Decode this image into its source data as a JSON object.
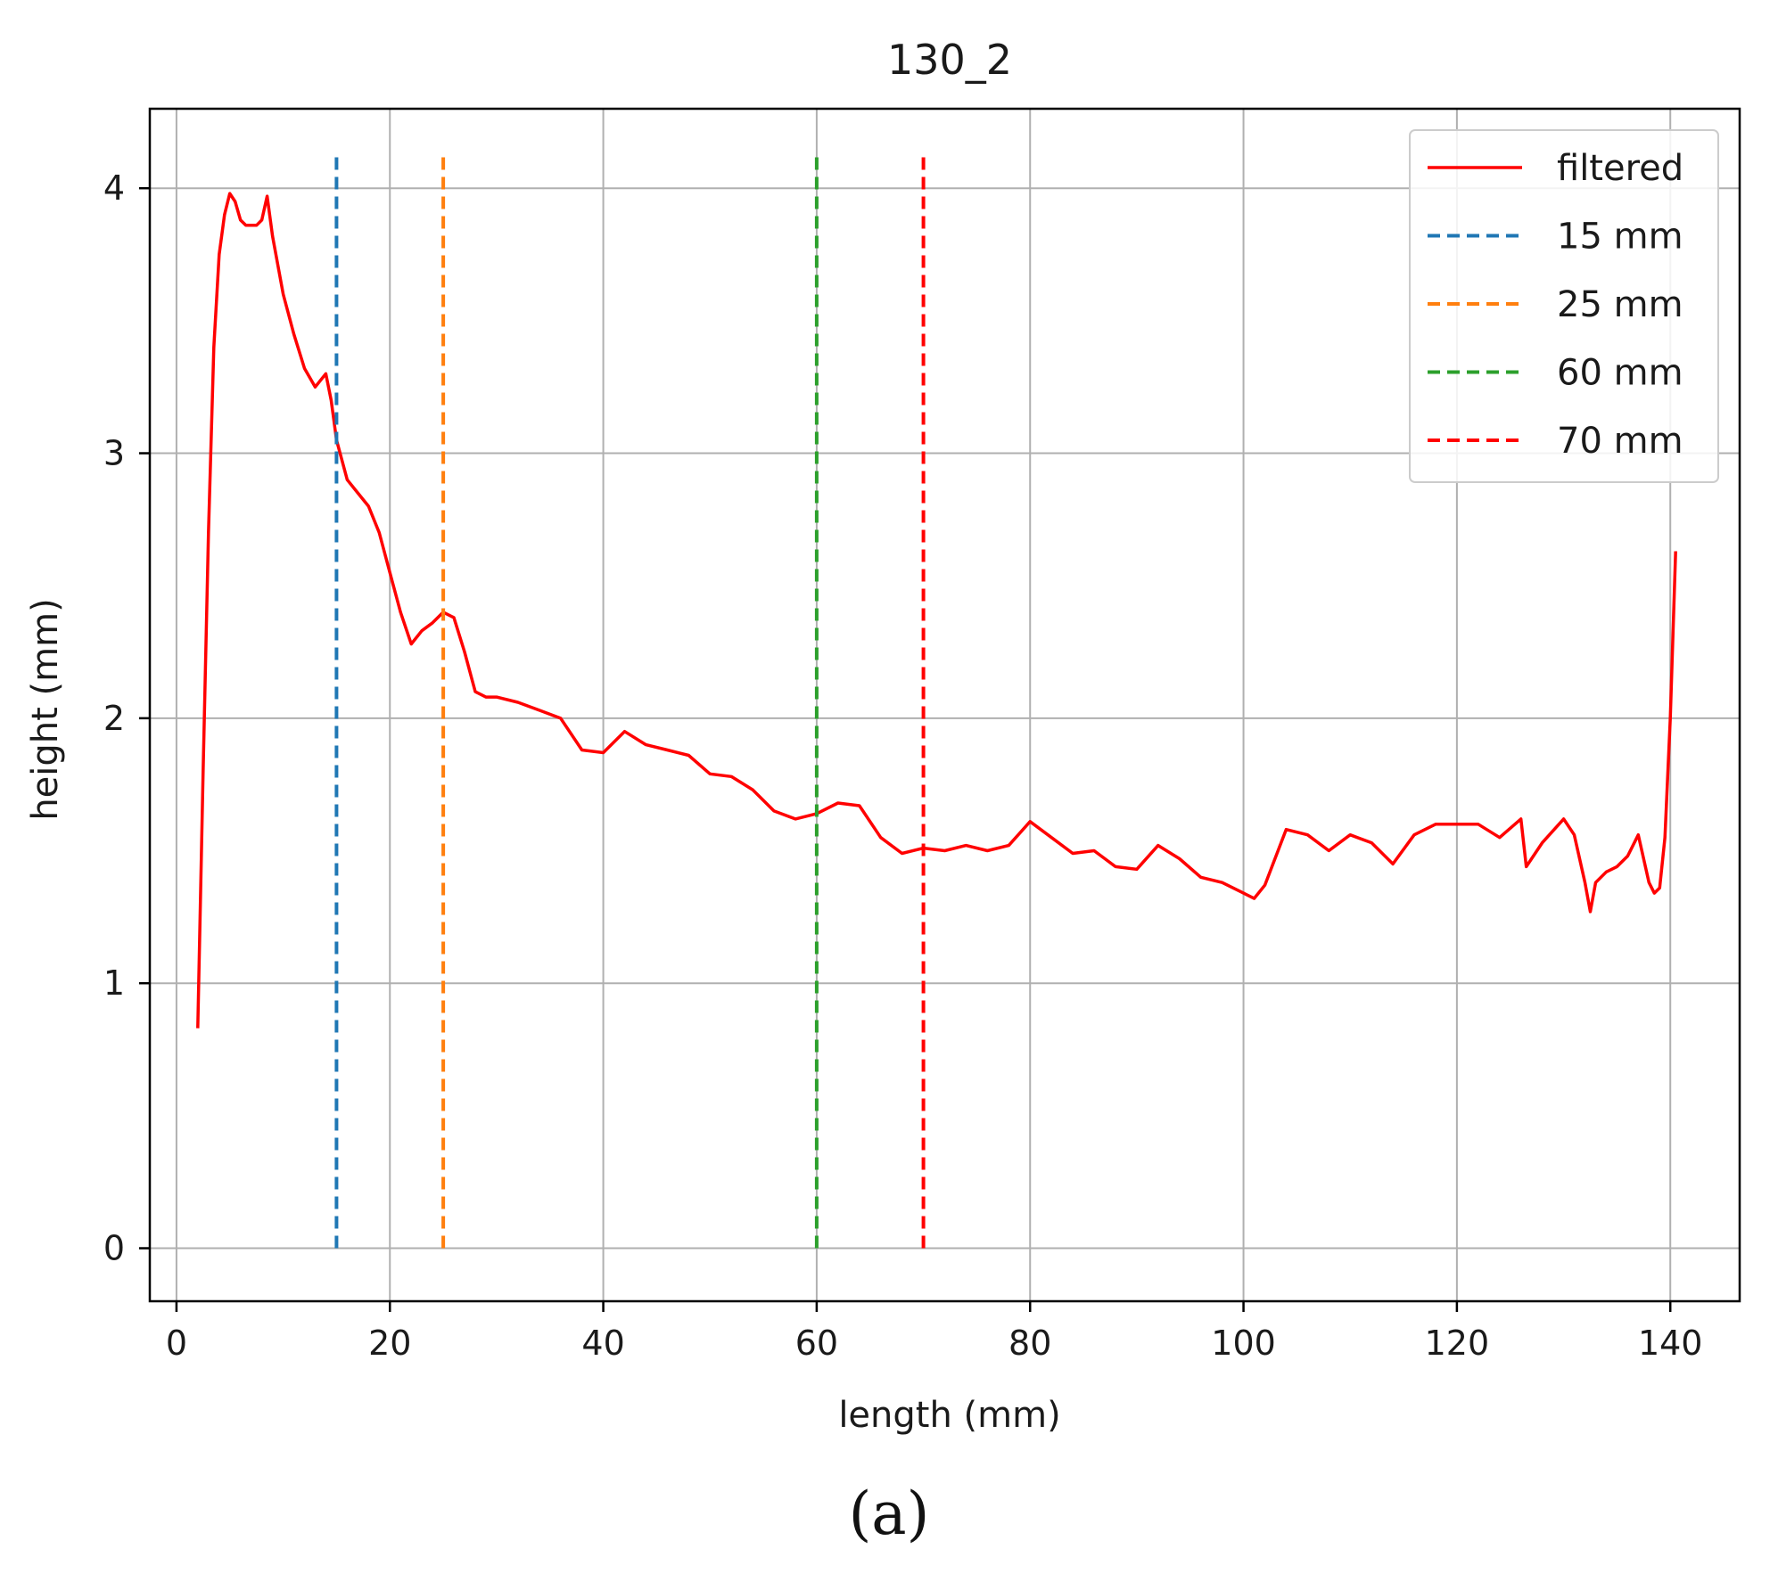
{
  "chart_data": {
    "type": "line",
    "title": "130_2",
    "xlabel": "length (mm)",
    "ylabel": "height (mm)",
    "xlim": [
      -2.5,
      146.5
    ],
    "ylim": [
      -0.2,
      4.3
    ],
    "xticks": [
      0,
      20,
      40,
      60,
      80,
      100,
      120,
      140
    ],
    "yticks": [
      0,
      1,
      2,
      3,
      4
    ],
    "grid": true,
    "legend_position": "top-right",
    "series": [
      {
        "name": "filtered",
        "style": "solid",
        "color": "#ff0000",
        "x": [
          2,
          2.5,
          3,
          3.5,
          4,
          4.5,
          5,
          5.5,
          6,
          6.5,
          7,
          7.5,
          8,
          8.5,
          9,
          10,
          11,
          12,
          13,
          14,
          14.5,
          15,
          16,
          17,
          18,
          19,
          20,
          21,
          22,
          23,
          24,
          25,
          26,
          27,
          28,
          29,
          30,
          32,
          34,
          36,
          38,
          40,
          42,
          44,
          46,
          48,
          50,
          52,
          54,
          56,
          58,
          60,
          62,
          64,
          66,
          68,
          70,
          72,
          74,
          76,
          78,
          80,
          82,
          84,
          86,
          88,
          90,
          92,
          94,
          96,
          98,
          100,
          101,
          102,
          104,
          106,
          108,
          110,
          112,
          114,
          116,
          118,
          120,
          122,
          124,
          126,
          126.5,
          128,
          130,
          131,
          132,
          132.5,
          133,
          134,
          135,
          136,
          137,
          138,
          138.5,
          139,
          139.5,
          140,
          140.5
        ],
        "y": [
          0.83,
          1.8,
          2.7,
          3.4,
          3.75,
          3.9,
          3.98,
          3.95,
          3.88,
          3.86,
          3.86,
          3.86,
          3.88,
          3.97,
          3.82,
          3.6,
          3.45,
          3.32,
          3.25,
          3.3,
          3.2,
          3.05,
          2.9,
          2.85,
          2.8,
          2.7,
          2.55,
          2.4,
          2.28,
          2.33,
          2.36,
          2.4,
          2.38,
          2.25,
          2.1,
          2.08,
          2.08,
          2.06,
          2.03,
          2.0,
          1.88,
          1.87,
          1.95,
          1.9,
          1.88,
          1.86,
          1.79,
          1.78,
          1.73,
          1.65,
          1.62,
          1.64,
          1.68,
          1.67,
          1.55,
          1.49,
          1.51,
          1.5,
          1.52,
          1.5,
          1.52,
          1.61,
          1.55,
          1.49,
          1.5,
          1.44,
          1.43,
          1.52,
          1.47,
          1.4,
          1.38,
          1.34,
          1.32,
          1.37,
          1.58,
          1.56,
          1.5,
          1.56,
          1.53,
          1.45,
          1.56,
          1.6,
          1.6,
          1.6,
          1.55,
          1.62,
          1.44,
          1.53,
          1.62,
          1.56,
          1.38,
          1.27,
          1.38,
          1.42,
          1.44,
          1.48,
          1.56,
          1.38,
          1.34,
          1.36,
          1.55,
          2.0,
          2.63
        ]
      },
      {
        "name": "15 mm",
        "style": "dashed",
        "color": "#1f77b4",
        "x": [
          15,
          15
        ],
        "y": [
          0,
          4.12
        ]
      },
      {
        "name": "25 mm",
        "style": "dashed",
        "color": "#ff7f0e",
        "x": [
          25,
          25
        ],
        "y": [
          0,
          4.12
        ]
      },
      {
        "name": "60 mm",
        "style": "dashed",
        "color": "#2ca02c",
        "x": [
          60,
          60
        ],
        "y": [
          0,
          4.12
        ]
      },
      {
        "name": "70 mm",
        "style": "dashed",
        "color": "#ff0000",
        "x": [
          70,
          70
        ],
        "y": [
          0,
          4.12
        ]
      }
    ]
  },
  "caption": "(a)"
}
